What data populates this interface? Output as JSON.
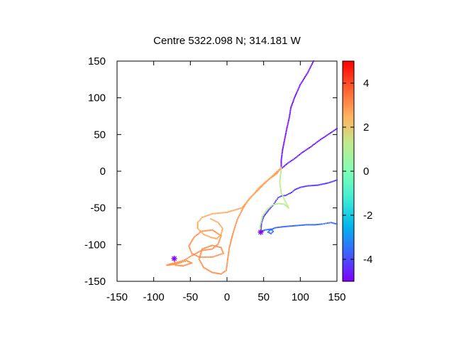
{
  "chart_data": {
    "type": "scatter",
    "title": "Centre 5322.098 N; 314.181  W",
    "xlabel": "",
    "ylabel": "",
    "xlim": [
      -150,
      150
    ],
    "ylim": [
      -150,
      150
    ],
    "xticks": [
      -150,
      -100,
      -50,
      0,
      50,
      100,
      150
    ],
    "yticks": [
      -150,
      -100,
      -50,
      0,
      50,
      100,
      150
    ],
    "grid": false,
    "colorbar": {
      "range": [
        -5,
        5
      ],
      "ticks": [
        4,
        2,
        0,
        -2,
        -4
      ],
      "colormap": "rainbow",
      "colors": [
        "#7f00ff",
        "#3f5fff",
        "#00b5eb",
        "#40ecd4",
        "#80ffb4",
        "#c0eb8d",
        "#ffb360",
        "#ff5f30",
        "#ff0000"
      ]
    },
    "series": [
      {
        "color_value": -4.8,
        "points": [
          [
            118,
            150
          ],
          [
            110,
            134
          ],
          [
            100,
            118
          ],
          [
            92,
            100
          ],
          [
            87,
            86
          ],
          [
            85,
            73
          ],
          [
            82,
            60
          ],
          [
            79,
            45
          ],
          [
            76,
            30
          ],
          [
            74,
            15
          ],
          [
            74,
            5
          ]
        ]
      },
      {
        "color_value": -4.6,
        "points": [
          [
            150,
            58
          ],
          [
            138,
            50
          ],
          [
            126,
            42
          ],
          [
            114,
            33
          ],
          [
            102,
            25
          ],
          [
            92,
            17
          ],
          [
            83,
            11
          ],
          [
            77,
            6
          ],
          [
            74,
            3
          ]
        ]
      },
      {
        "color_value": -4.2,
        "points": [
          [
            150,
            -12
          ],
          [
            138,
            -16
          ],
          [
            124,
            -19
          ],
          [
            110,
            -20
          ],
          [
            100,
            -22
          ],
          [
            93,
            -25
          ],
          [
            88,
            -29
          ],
          [
            80,
            -33
          ],
          [
            74,
            -34
          ],
          [
            70,
            -36
          ],
          [
            67,
            -40
          ],
          [
            63,
            -46
          ],
          [
            56,
            -54
          ],
          [
            50,
            -62
          ],
          [
            47,
            -71
          ],
          [
            46,
            -83
          ]
        ]
      },
      {
        "color_value": -3.6,
        "points": [
          [
            150,
            -72
          ],
          [
            142,
            -70
          ],
          [
            135,
            -71
          ],
          [
            130,
            -72
          ],
          [
            120,
            -73
          ],
          [
            108,
            -73
          ],
          [
            96,
            -74
          ],
          [
            84,
            -75
          ],
          [
            74,
            -76
          ],
          [
            66,
            -77
          ],
          [
            59,
            -80
          ],
          [
            56,
            -83
          ],
          [
            60,
            -85
          ],
          [
            63,
            -82
          ],
          [
            60,
            -79
          ],
          [
            52,
            -80
          ],
          [
            47,
            -82
          ]
        ]
      },
      {
        "color_value": 3.0,
        "points": [
          [
            74,
            5
          ],
          [
            68,
            -3
          ],
          [
            56,
            -12
          ],
          [
            42,
            -26
          ],
          [
            30,
            -38
          ],
          [
            22,
            -50
          ],
          [
            14,
            -66
          ],
          [
            8,
            -85
          ],
          [
            3,
            -105
          ],
          [
            1,
            -120
          ],
          [
            -1,
            -135
          ],
          [
            -8,
            -140
          ],
          [
            -20,
            -138
          ],
          [
            -32,
            -131
          ],
          [
            -38,
            -120
          ],
          [
            -34,
            -106
          ],
          [
            -20,
            -101
          ],
          [
            -8,
            -104
          ],
          [
            -5,
            -112
          ],
          [
            -20,
            -117
          ],
          [
            -38,
            -117
          ],
          [
            -48,
            -112
          ],
          [
            -52,
            -102
          ],
          [
            -45,
            -90
          ],
          [
            -35,
            -82
          ],
          [
            -20,
            -80
          ],
          [
            -8,
            -88
          ],
          [
            -12,
            -99
          ],
          [
            -20,
            -106
          ],
          [
            -35,
            -108
          ],
          [
            -48,
            -115
          ],
          [
            -58,
            -121
          ],
          [
            -67,
            -124
          ],
          [
            -76,
            -126
          ],
          [
            -82,
            -128
          ],
          [
            -72,
            -127
          ],
          [
            -62,
            -124
          ],
          [
            -55,
            -122
          ],
          [
            -48,
            -125
          ],
          [
            -60,
            -129
          ],
          [
            -70,
            -128
          ],
          [
            -72,
            -121
          ]
        ]
      },
      {
        "color_value": 2.6,
        "points": [
          [
            74,
            5
          ],
          [
            58,
            -10
          ],
          [
            44,
            -22
          ],
          [
            34,
            -34
          ],
          [
            20,
            -50
          ],
          [
            0,
            -56
          ],
          [
            -20,
            -58
          ],
          [
            -34,
            -63
          ],
          [
            -40,
            -70
          ],
          [
            -40,
            -78
          ],
          [
            -32,
            -86
          ],
          [
            -22,
            -90
          ],
          [
            -14,
            -92
          ],
          [
            -8,
            -86
          ],
          [
            -6,
            -78
          ],
          [
            -12,
            -70
          ],
          [
            -22,
            -65
          ]
        ]
      },
      {
        "color_value": 1.2,
        "points": [
          [
            74,
            3
          ],
          [
            72,
            -15
          ],
          [
            74,
            -30
          ],
          [
            80,
            -42
          ],
          [
            84,
            -50
          ],
          [
            78,
            -45
          ],
          [
            70,
            -44
          ],
          [
            62,
            -46
          ],
          [
            55,
            -52
          ],
          [
            48,
            -62
          ],
          [
            45,
            -75
          ],
          [
            46,
            -83
          ]
        ]
      }
    ],
    "markers": [
      {
        "label": "start",
        "x": -72,
        "y": -119,
        "color_value": -5
      },
      {
        "label": "end",
        "x": 46,
        "y": -83,
        "color_value": -5
      }
    ]
  }
}
